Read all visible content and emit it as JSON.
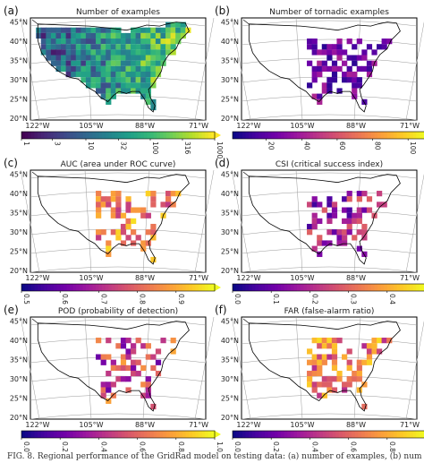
{
  "figure": {
    "caption": "FIG. 8. Regional performance of the GridRad model on testing data: (a) number of examples, (b) num"
  },
  "chart_data": [
    {
      "type": "heatmap",
      "panel_letter": "(a)",
      "title": "Number of examples",
      "lat_ticks": [
        "20°N",
        "25°N",
        "30°N",
        "35°N",
        "40°N",
        "45°N"
      ],
      "lon_ticks": [
        "122°W",
        "105°W",
        "88°W",
        "71°W"
      ],
      "colormap": "viridis",
      "colorbar_scale": "log",
      "colorbar_ticks": [
        "1",
        "3",
        "10",
        "32",
        "100",
        "316",
        "1000"
      ],
      "colorbar_range": [
        1,
        1000
      ]
    },
    {
      "type": "heatmap",
      "panel_letter": "(b)",
      "title": "Number of tornadic examples",
      "lat_ticks": [
        "20°N",
        "25°N",
        "30°N",
        "35°N",
        "40°N",
        "45°N"
      ],
      "lon_ticks": [
        "122°W",
        "105°W",
        "88°W",
        "71°W"
      ],
      "colormap": "plasma",
      "colorbar_scale": "linear",
      "colorbar_ticks": [
        "20",
        "40",
        "60",
        "80",
        "100"
      ],
      "colorbar_range": [
        1,
        110
      ]
    },
    {
      "type": "heatmap",
      "panel_letter": "(c)",
      "title": "AUC (area under ROC curve)",
      "lat_ticks": [
        "20°N",
        "25°N",
        "30°N",
        "35°N",
        "40°N",
        "45°N"
      ],
      "lon_ticks": [
        "122°W",
        "105°W",
        "88°W",
        "71°W"
      ],
      "colormap": "plasma",
      "colorbar_scale": "linear",
      "colorbar_ticks": [
        "0.5",
        "0.6",
        "0.7",
        "0.8",
        "0.9"
      ],
      "colorbar_range": [
        0.5,
        1.0
      ]
    },
    {
      "type": "heatmap",
      "panel_letter": "(d)",
      "title": "CSI (critical success index)",
      "lat_ticks": [
        "20°N",
        "25°N",
        "30°N",
        "35°N",
        "40°N",
        "45°N"
      ],
      "lon_ticks": [
        "122°W",
        "105°W",
        "88°W",
        "71°W"
      ],
      "colormap": "plasma",
      "colorbar_scale": "linear",
      "colorbar_ticks": [
        "0.0",
        "0.1",
        "0.2",
        "0.3",
        "0.4"
      ],
      "colorbar_range": [
        0.0,
        0.5
      ]
    },
    {
      "type": "heatmap",
      "panel_letter": "(e)",
      "title": "POD (probability of detection)",
      "lat_ticks": [
        "20°N",
        "25°N",
        "30°N",
        "35°N",
        "40°N",
        "45°N"
      ],
      "lon_ticks": [
        "122°W",
        "105°W",
        "88°W",
        "71°W"
      ],
      "colormap": "plasma",
      "colorbar_scale": "linear",
      "colorbar_ticks": [
        "0.0",
        "0.2",
        "0.4",
        "0.6",
        "0.8",
        "1.0"
      ],
      "colorbar_range": [
        0.0,
        1.0
      ]
    },
    {
      "type": "heatmap",
      "panel_letter": "(f)",
      "title": "FAR (false-alarm ratio)",
      "lat_ticks": [
        "20°N",
        "25°N",
        "30°N",
        "35°N",
        "40°N",
        "45°N"
      ],
      "lon_ticks": [
        "122°W",
        "105°W",
        "88°W",
        "71°W"
      ],
      "colormap": "plasma",
      "colorbar_scale": "linear",
      "colorbar_ticks": [
        "0.0",
        "0.2",
        "0.4",
        "0.6",
        "0.8",
        "1.0"
      ],
      "colorbar_range": [
        0.0,
        1.0
      ]
    }
  ]
}
